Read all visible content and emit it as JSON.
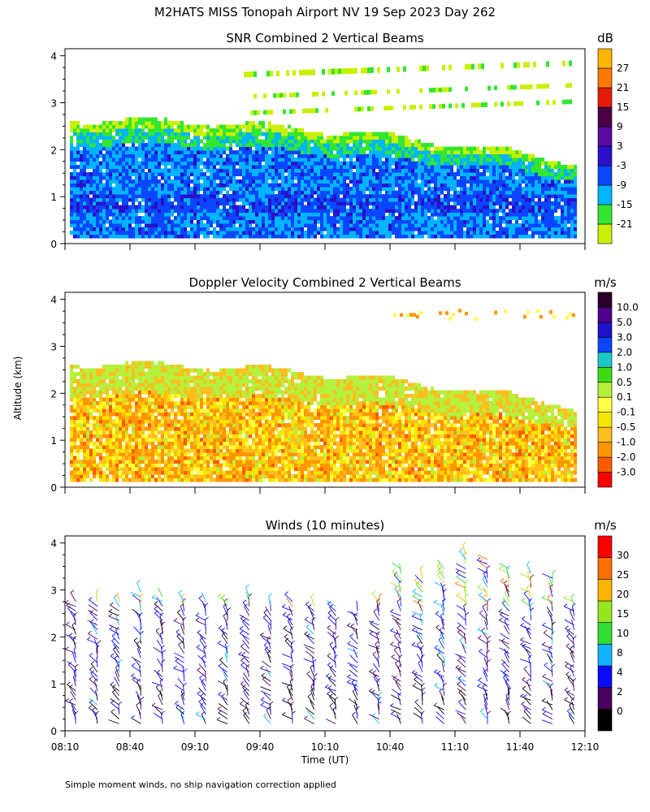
{
  "figure_title": "M2HATS MISS Tonopah Airport NV  19 Sep 2023 Day 262",
  "shared_ylabel": "Altitude (km)",
  "footnote": "Simple moment winds, no ship navigation correction applied",
  "chart_data": [
    {
      "type": "heatmap",
      "title": "SNR Combined 2 Vertical Beams",
      "xlabel": "",
      "ylabel": "Altitude (km)",
      "ylim": [
        0,
        4
      ],
      "yticks": [
        "0",
        "1",
        "2",
        "3",
        "4"
      ],
      "xlim": [
        "08:10",
        "12:10"
      ],
      "colorbar": {
        "unit": "dB",
        "labels": [
          "27",
          "21",
          "15",
          "9",
          "3",
          "-3",
          "-9",
          "-15",
          "-21"
        ],
        "colors": [
          "#c8f000",
          "#32e632",
          "#00b4ff",
          "#0a46ff",
          "#2a10c8",
          "#5a0aa0",
          "#4a0046",
          "#e61a0a",
          "#ff7800",
          "#ffb400"
        ]
      },
      "regions": [
        {
          "description": "echo layer top",
          "altitude_km": 2.6
        },
        {
          "description": "strong echo band",
          "altitude_km": [
            0.7,
            1.0
          ]
        },
        {
          "description": "upper elevated layers",
          "altitude_km": [
            2.8,
            3.8
          ]
        }
      ]
    },
    {
      "type": "heatmap",
      "title": "Doppler Velocity Combined 2 Vertical Beams",
      "xlabel": "",
      "ylabel": "Altitude (km)",
      "ylim": [
        0,
        4
      ],
      "yticks": [
        "0",
        "1",
        "2",
        "3",
        "4"
      ],
      "xlim": [
        "08:10",
        "12:10"
      ],
      "colorbar": {
        "unit": "m/s",
        "labels": [
          "10.0",
          "5.0",
          "3.0",
          "2.0",
          "1.0",
          "0.5",
          "0.1",
          "-0.1",
          "-0.5",
          "-1.0",
          "-2.0",
          "-3.0"
        ],
        "colors": [
          "#ff0000",
          "#ff5a00",
          "#ff9600",
          "#ffbe1e",
          "#f5e600",
          "#ffff46",
          "#b4f03c",
          "#3cdc14",
          "#1ec8c8",
          "#0a46ff",
          "#1e10c8",
          "#50008c",
          "#280028"
        ]
      }
    },
    {
      "type": "scatter",
      "title": "Winds (10 minutes)",
      "xlabel": "Time (UT)",
      "ylabel": "Altitude (km)",
      "ylim": [
        0,
        4
      ],
      "yticks": [
        "0",
        "1",
        "2",
        "3",
        "4"
      ],
      "xlim": [
        "08:10",
        "12:10"
      ],
      "xticks": [
        "08:10",
        "08:40",
        "09:10",
        "09:40",
        "10:10",
        "10:40",
        "11:10",
        "11:40",
        "12:10"
      ],
      "colorbar": {
        "unit": "m/s",
        "labels": [
          "30",
          "25",
          "20",
          "15",
          "10",
          "8",
          "4",
          "2",
          "0"
        ],
        "colors": [
          "#000000",
          "#4a0060",
          "#0a0aff",
          "#10b4ff",
          "#32dc32",
          "#96e61e",
          "#ffb400",
          "#ff6e00",
          "#ff0000"
        ]
      },
      "barb_times": [
        "08:15",
        "08:25",
        "08:35",
        "08:45",
        "08:55",
        "09:05",
        "09:15",
        "09:25",
        "09:35",
        "09:45",
        "09:55",
        "10:05",
        "10:15",
        "10:25",
        "10:35",
        "10:45",
        "10:55",
        "11:05",
        "11:15",
        "11:25",
        "11:35",
        "11:45",
        "11:55",
        "12:05"
      ],
      "barb_top_altitude_km": [
        2.8,
        2.8,
        2.8,
        3.0,
        2.9,
        2.8,
        2.8,
        2.8,
        2.9,
        2.7,
        2.8,
        2.7,
        2.7,
        2.6,
        2.8,
        3.5,
        3.3,
        3.5,
        3.8,
        3.7,
        3.5,
        3.4,
        3.3,
        2.8
      ],
      "wind_range_ms": [
        0,
        34
      ]
    }
  ]
}
